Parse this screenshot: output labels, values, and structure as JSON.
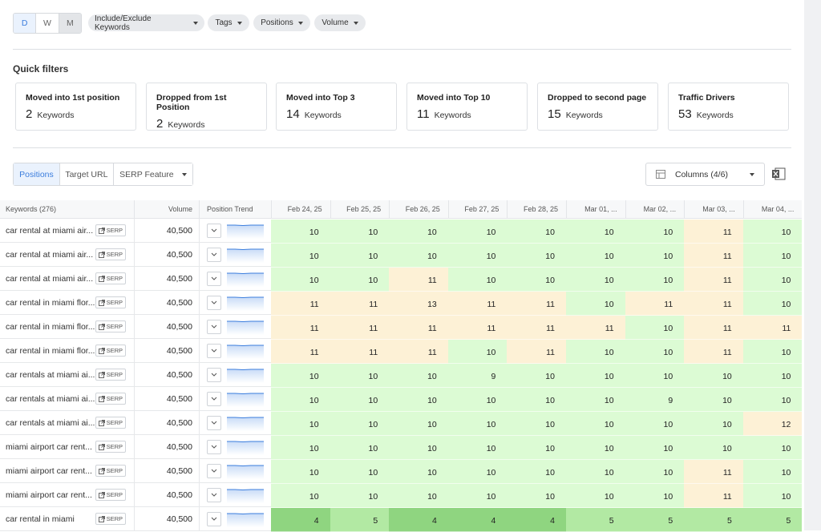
{
  "view_toggle": [
    "D",
    "W",
    "M"
  ],
  "filters": [
    "Include/Exclude Keywords",
    "Tags",
    "Positions",
    "Volume"
  ],
  "quick_filters": {
    "title": "Quick filters",
    "cards": [
      {
        "title": "Moved into 1st position",
        "count": 2,
        "unit": "Keywords"
      },
      {
        "title": "Dropped from 1st Position",
        "count": 2,
        "unit": "Keywords"
      },
      {
        "title": "Moved into Top 3",
        "count": 14,
        "unit": "Keywords"
      },
      {
        "title": "Moved into Top 10",
        "count": 11,
        "unit": "Keywords"
      },
      {
        "title": "Dropped to second page",
        "count": 15,
        "unit": "Keywords"
      },
      {
        "title": "Traffic Drivers",
        "count": 53,
        "unit": "Keywords"
      }
    ]
  },
  "tabs": [
    "Positions",
    "Target URL",
    "SERP Feature"
  ],
  "columns_button": "Columns (4/6)",
  "table": {
    "headers": [
      "Keywords (276)",
      "Volume",
      "Position Trend"
    ],
    "dates": [
      "Feb 24, 25",
      "Feb 25, 25",
      "Feb 26, 25",
      "Feb 27, 25",
      "Feb 28, 25",
      "Mar 01, ...",
      "Mar 02, ...",
      "Mar 03, ...",
      "Mar 04, ..."
    ],
    "serp_label": "SERP",
    "position_colors": {
      "4": "#8fd580",
      "5": "#b2e9a3",
      "9": "#dcfbd4",
      "10": "#dcfbd4",
      "11": "#fdf1d6",
      "12": "#fdf1d6",
      "13": "#fdf1d6"
    },
    "rows": [
      {
        "keyword": "car rental at miami air...",
        "volume": "40,500",
        "positions": [
          10,
          10,
          10,
          10,
          10,
          10,
          10,
          11,
          10
        ]
      },
      {
        "keyword": "car rental at miami air...",
        "volume": "40,500",
        "positions": [
          10,
          10,
          10,
          10,
          10,
          10,
          10,
          11,
          10
        ]
      },
      {
        "keyword": "car rental at miami air...",
        "volume": "40,500",
        "positions": [
          10,
          10,
          11,
          10,
          10,
          10,
          10,
          11,
          10
        ]
      },
      {
        "keyword": "car rental in miami flor...",
        "volume": "40,500",
        "positions": [
          11,
          11,
          13,
          11,
          11,
          10,
          11,
          11,
          10
        ]
      },
      {
        "keyword": "car rental in miami flor...",
        "volume": "40,500",
        "positions": [
          11,
          11,
          11,
          11,
          11,
          11,
          10,
          11,
          11
        ]
      },
      {
        "keyword": "car rental in miami flor...",
        "volume": "40,500",
        "positions": [
          11,
          11,
          11,
          10,
          11,
          10,
          10,
          11,
          10
        ]
      },
      {
        "keyword": "car rentals at miami ai...",
        "volume": "40,500",
        "positions": [
          10,
          10,
          10,
          9,
          10,
          10,
          10,
          10,
          10
        ]
      },
      {
        "keyword": "car rentals at miami ai...",
        "volume": "40,500",
        "positions": [
          10,
          10,
          10,
          10,
          10,
          10,
          9,
          10,
          10
        ]
      },
      {
        "keyword": "car rentals at miami ai...",
        "volume": "40,500",
        "positions": [
          10,
          10,
          10,
          10,
          10,
          10,
          10,
          10,
          12
        ]
      },
      {
        "keyword": "miami airport car rent...",
        "volume": "40,500",
        "positions": [
          10,
          10,
          10,
          10,
          10,
          10,
          10,
          10,
          10
        ]
      },
      {
        "keyword": "miami airport car rent...",
        "volume": "40,500",
        "positions": [
          10,
          10,
          10,
          10,
          10,
          10,
          10,
          11,
          10
        ]
      },
      {
        "keyword": "miami airport car rent...",
        "volume": "40,500",
        "positions": [
          10,
          10,
          10,
          10,
          10,
          10,
          10,
          11,
          10
        ]
      },
      {
        "keyword": "car rental in miami",
        "volume": "40,500",
        "positions": [
          4,
          5,
          4,
          4,
          4,
          5,
          5,
          5,
          5
        ]
      }
    ]
  }
}
